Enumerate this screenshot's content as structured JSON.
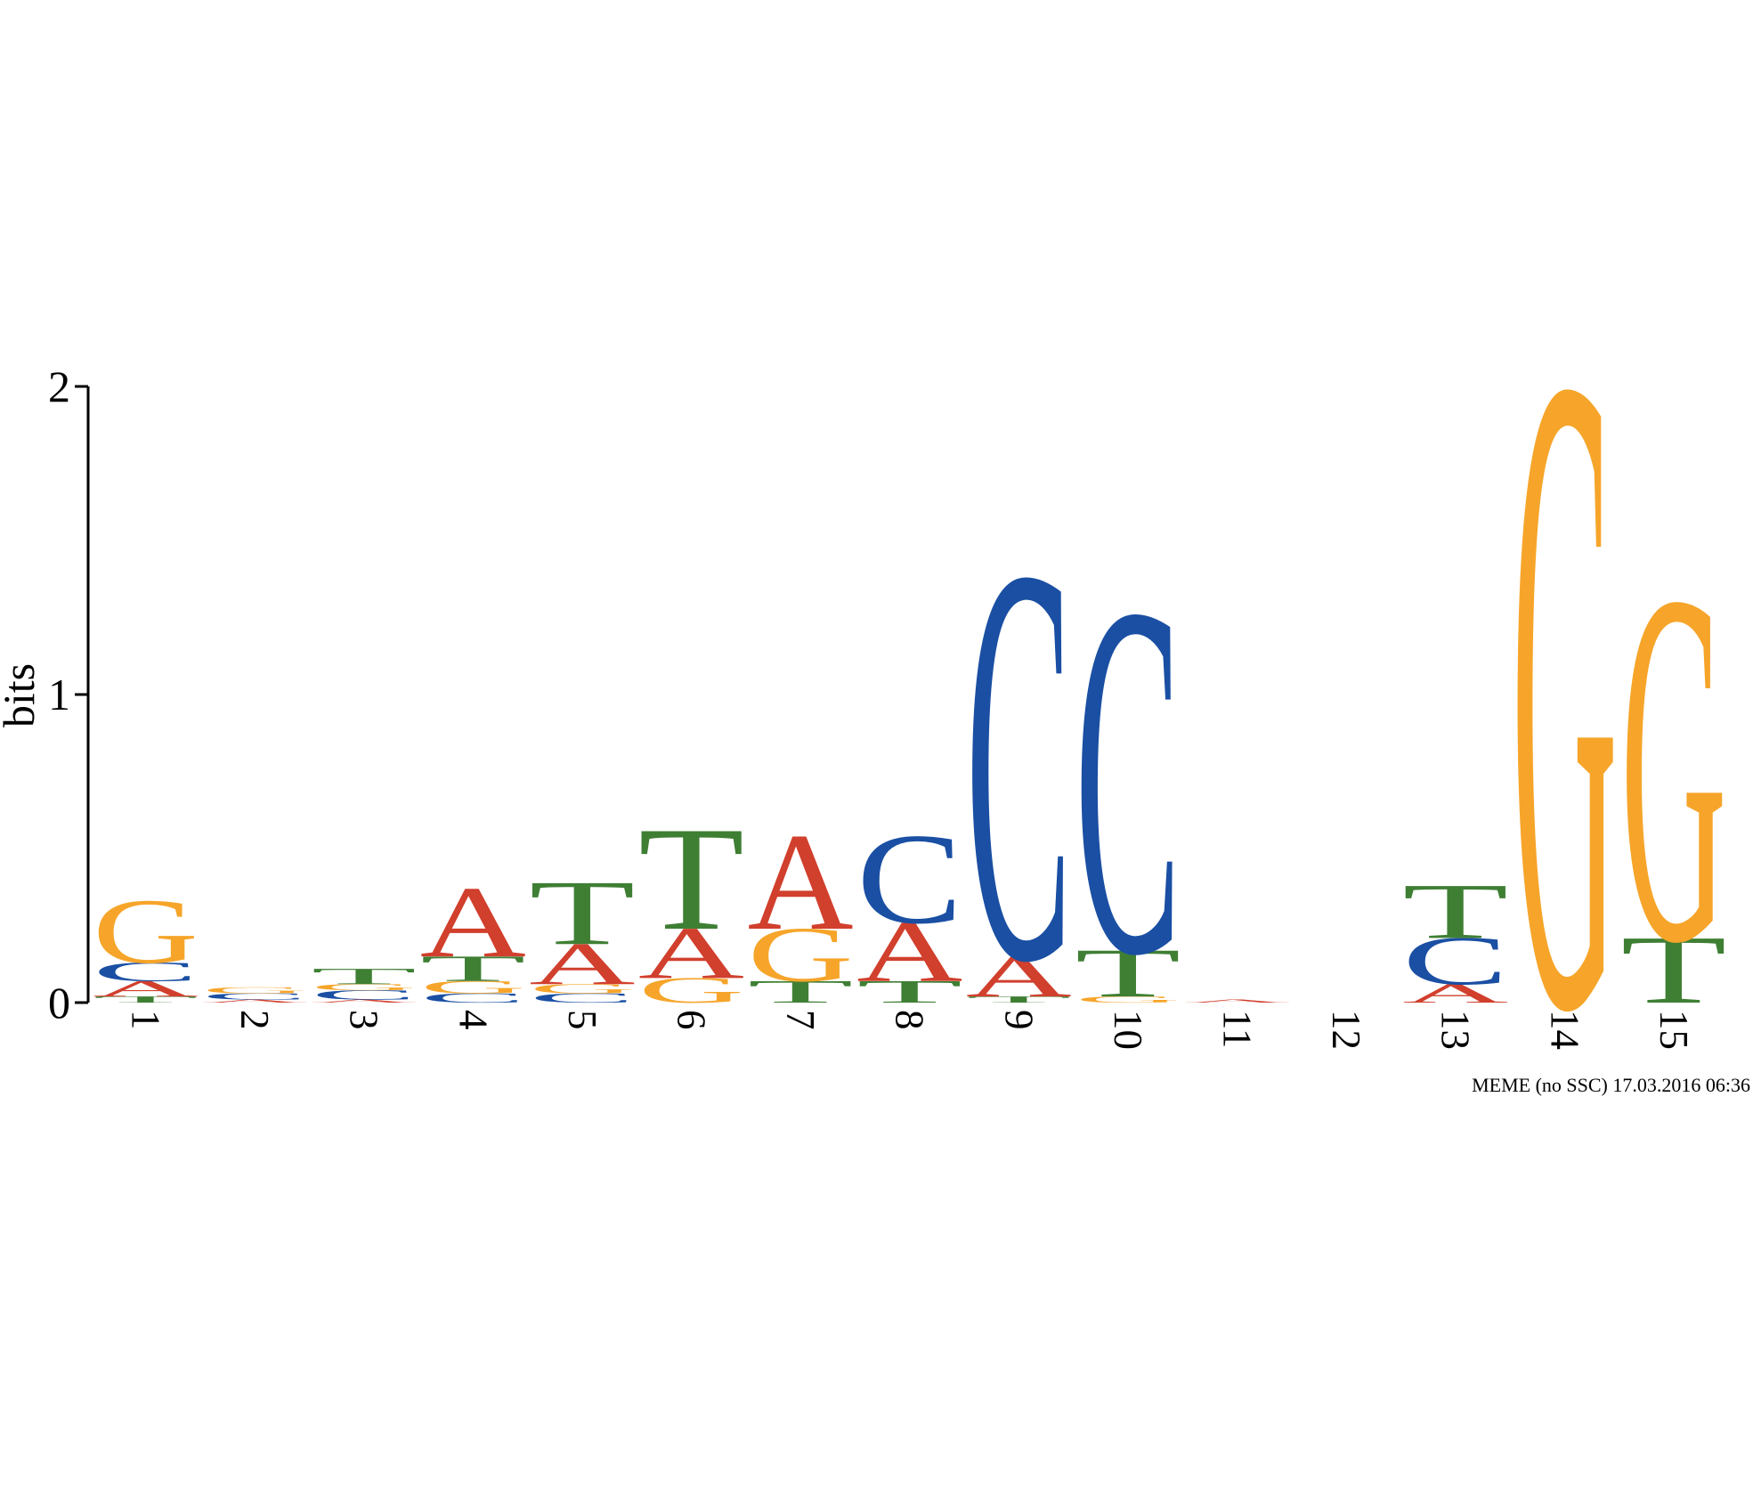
{
  "chart_data": {
    "type": "logo",
    "y_label": "bits",
    "footer": "MEME (no SSC) 17.03.2016 06:36",
    "ylim": [
      0,
      2
    ],
    "yticks": [
      0,
      1,
      2
    ],
    "colors": {
      "A": "#d13f2d",
      "C": "#1a4fa3",
      "G": "#f6a52a",
      "T": "#3f7f34"
    },
    "categories": [
      "1",
      "2",
      "3",
      "4",
      "5",
      "6",
      "7",
      "8",
      "9",
      "10",
      "11",
      "12",
      "13",
      "14",
      "15"
    ],
    "stacks": [
      [
        {
          "letter": "T",
          "value": 0.02
        },
        {
          "letter": "A",
          "value": 0.05
        },
        {
          "letter": "C",
          "value": 0.06
        },
        {
          "letter": "G",
          "value": 0.2
        }
      ],
      [
        {
          "letter": "A",
          "value": 0.01
        },
        {
          "letter": "C",
          "value": 0.02
        },
        {
          "letter": "G",
          "value": 0.02
        }
      ],
      [
        {
          "letter": "A",
          "value": 0.01
        },
        {
          "letter": "C",
          "value": 0.03
        },
        {
          "letter": "G",
          "value": 0.02
        },
        {
          "letter": "T",
          "value": 0.05
        }
      ],
      [
        {
          "letter": "C",
          "value": 0.03
        },
        {
          "letter": "G",
          "value": 0.04
        },
        {
          "letter": "T",
          "value": 0.08
        },
        {
          "letter": "A",
          "value": 0.22
        }
      ],
      [
        {
          "letter": "C",
          "value": 0.03
        },
        {
          "letter": "G",
          "value": 0.03
        },
        {
          "letter": "A",
          "value": 0.13
        },
        {
          "letter": "T",
          "value": 0.2
        }
      ],
      [
        {
          "letter": "G",
          "value": 0.08
        },
        {
          "letter": "A",
          "value": 0.16
        },
        {
          "letter": "T",
          "value": 0.32
        }
      ],
      [
        {
          "letter": "T",
          "value": 0.07
        },
        {
          "letter": "G",
          "value": 0.17
        },
        {
          "letter": "A",
          "value": 0.3
        }
      ],
      [
        {
          "letter": "T",
          "value": 0.07
        },
        {
          "letter": "A",
          "value": 0.19
        },
        {
          "letter": "C",
          "value": 0.28
        }
      ],
      [
        {
          "letter": "T",
          "value": 0.02
        },
        {
          "letter": "A",
          "value": 0.13
        },
        {
          "letter": "C",
          "value": 1.23
        }
      ],
      [
        {
          "letter": "G",
          "value": 0.02
        },
        {
          "letter": "T",
          "value": 0.15
        },
        {
          "letter": "C",
          "value": 1.09
        }
      ],
      [
        {
          "letter": "A",
          "value": 0.01
        }
      ],
      [],
      [
        {
          "letter": "A",
          "value": 0.06
        },
        {
          "letter": "C",
          "value": 0.15
        },
        {
          "letter": "T",
          "value": 0.17
        }
      ],
      [
        {
          "letter": "G",
          "value": 1.99
        }
      ],
      [
        {
          "letter": "T",
          "value": 0.21
        },
        {
          "letter": "G",
          "value": 1.09
        }
      ]
    ]
  }
}
